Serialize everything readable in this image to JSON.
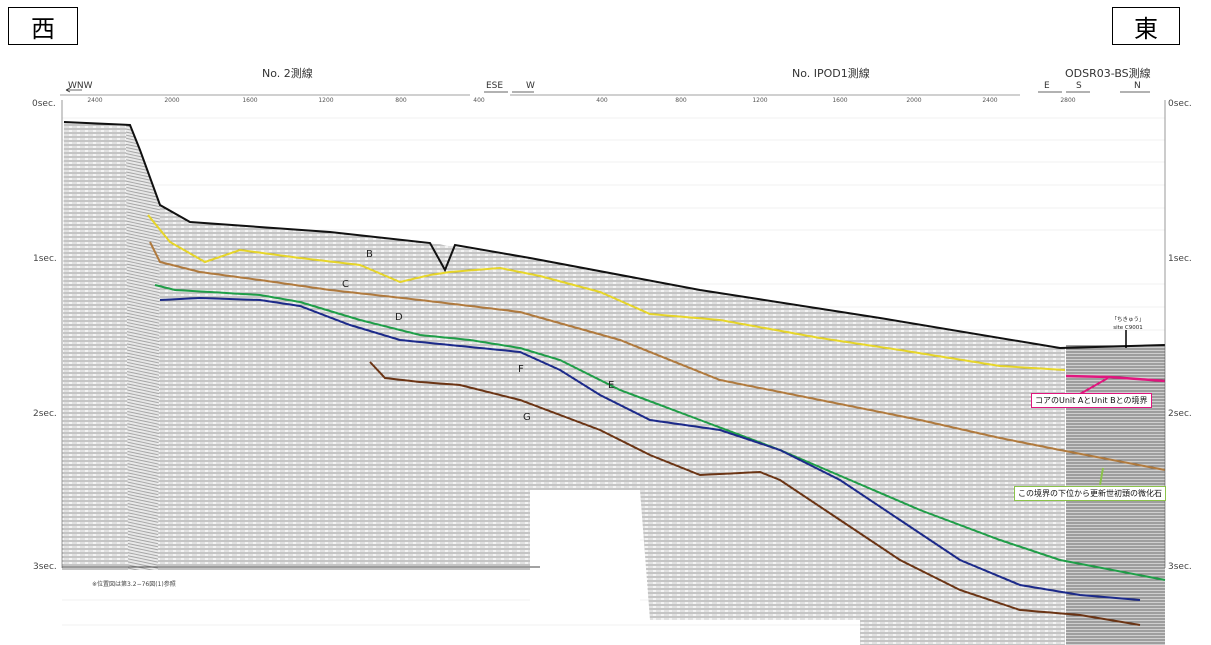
{
  "corners": {
    "west": "西",
    "east": "東"
  },
  "survey_lines": {
    "line1": "No. 2測線",
    "line2": "No. IPOD1測線",
    "line3": "ODSR03-BS測線"
  },
  "directions": {
    "wnw": "WNW",
    "ese": "ESE",
    "w": "W",
    "e": "E",
    "s": "S",
    "n": "N"
  },
  "distance_ticks": {
    "line1": [
      "2400",
      "2000",
      "1600",
      "1200",
      "800",
      "400"
    ],
    "line2": [
      "400",
      "800",
      "1200",
      "1600",
      "2000",
      "2400",
      "2800"
    ]
  },
  "twt_axis": {
    "left": [
      "0sec.",
      "1sec.",
      "2sec.",
      "3sec."
    ],
    "right": [
      "0sec.",
      "1sec.",
      "2sec.",
      "3sec."
    ]
  },
  "horizons": [
    {
      "name": "B",
      "label": "B",
      "color": "#e6d52a"
    },
    {
      "name": "C",
      "label": "C",
      "color": "#b07a3e"
    },
    {
      "name": "D",
      "label": "D",
      "color": "#1f9e48"
    },
    {
      "name": "E",
      "label": "E",
      "color": "#1c2a8a"
    },
    {
      "name": "F",
      "label": "F",
      "color": "#6b3414"
    },
    {
      "name": "G",
      "label": "G"
    }
  ],
  "chikyu_site": "「ちきゅう」\nsite C9001",
  "annotations": {
    "unit_boundary": "コアのUnit AとUnit Bとの境界",
    "fossil_boundary": "この境界の下位から更新世初頭の微化石"
  },
  "annotation_colors": {
    "unit_boundary": "#e0167e",
    "fossil_boundary": "#8bc34a"
  },
  "footnote": "※位置図は第3.2−76図(1)参照"
}
